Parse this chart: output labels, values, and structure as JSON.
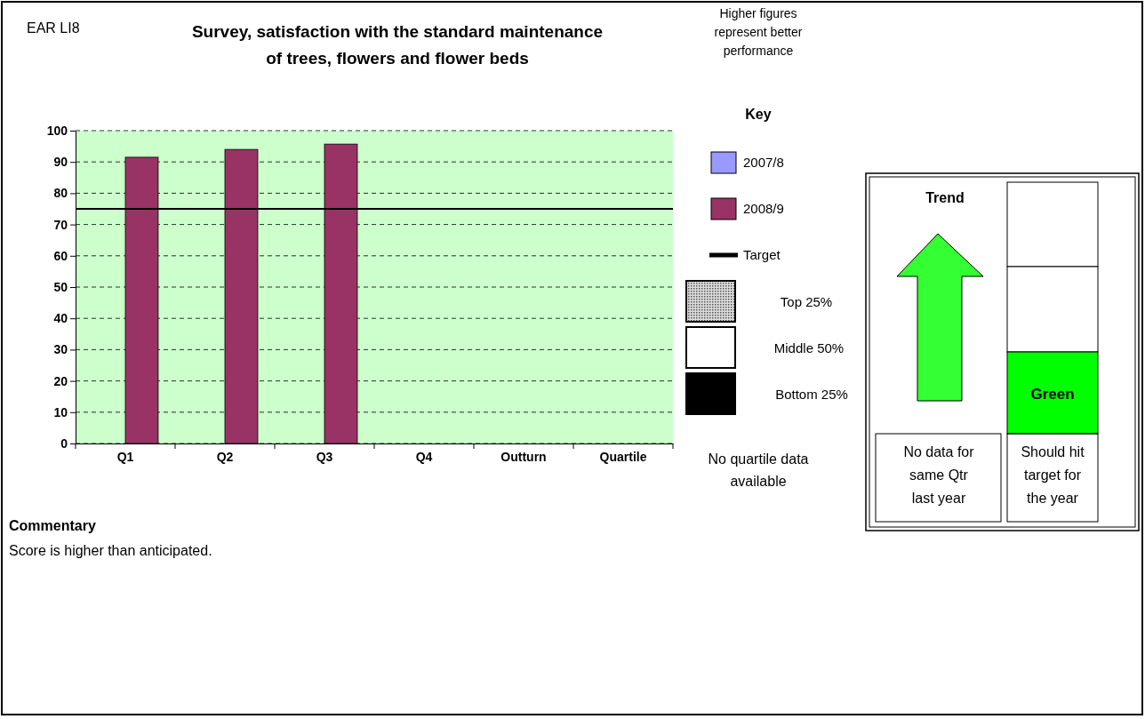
{
  "chart_data": {
    "type": "bar",
    "title": "Survey, satisfaction with the standard maintenance of trees, flowers and flower beds",
    "categories": [
      "Q1",
      "Q2",
      "Q3",
      "Q4",
      "Outturn",
      "Quartile"
    ],
    "series": [
      {
        "name": "2007/8",
        "color": "#9999ff",
        "values": [
          null,
          null,
          null,
          null,
          null,
          null
        ]
      },
      {
        "name": "2008/9",
        "color": "#993366",
        "values": [
          91.5,
          94,
          95.7,
          null,
          null,
          null
        ]
      }
    ],
    "ylim": [
      0,
      100
    ],
    "yticks": [
      0,
      10,
      20,
      30,
      40,
      50,
      60,
      70,
      80,
      90,
      100
    ],
    "grid": "y",
    "legend": "right",
    "ref_lines": [
      {
        "axis": "y",
        "value": 75,
        "label": "Target",
        "color": "#000000"
      }
    ],
    "annotations": [
      "EAR LI8",
      "Higher figures represent better performance",
      "Key",
      "Top 25%",
      "Middle 50%",
      "Bottom 25%",
      "No quartile data available",
      "Trend",
      "Green",
      "No data for same Qtr last year",
      "Should hit target for the year",
      "Commentary",
      "Score is higher than anticipated."
    ]
  }
}
